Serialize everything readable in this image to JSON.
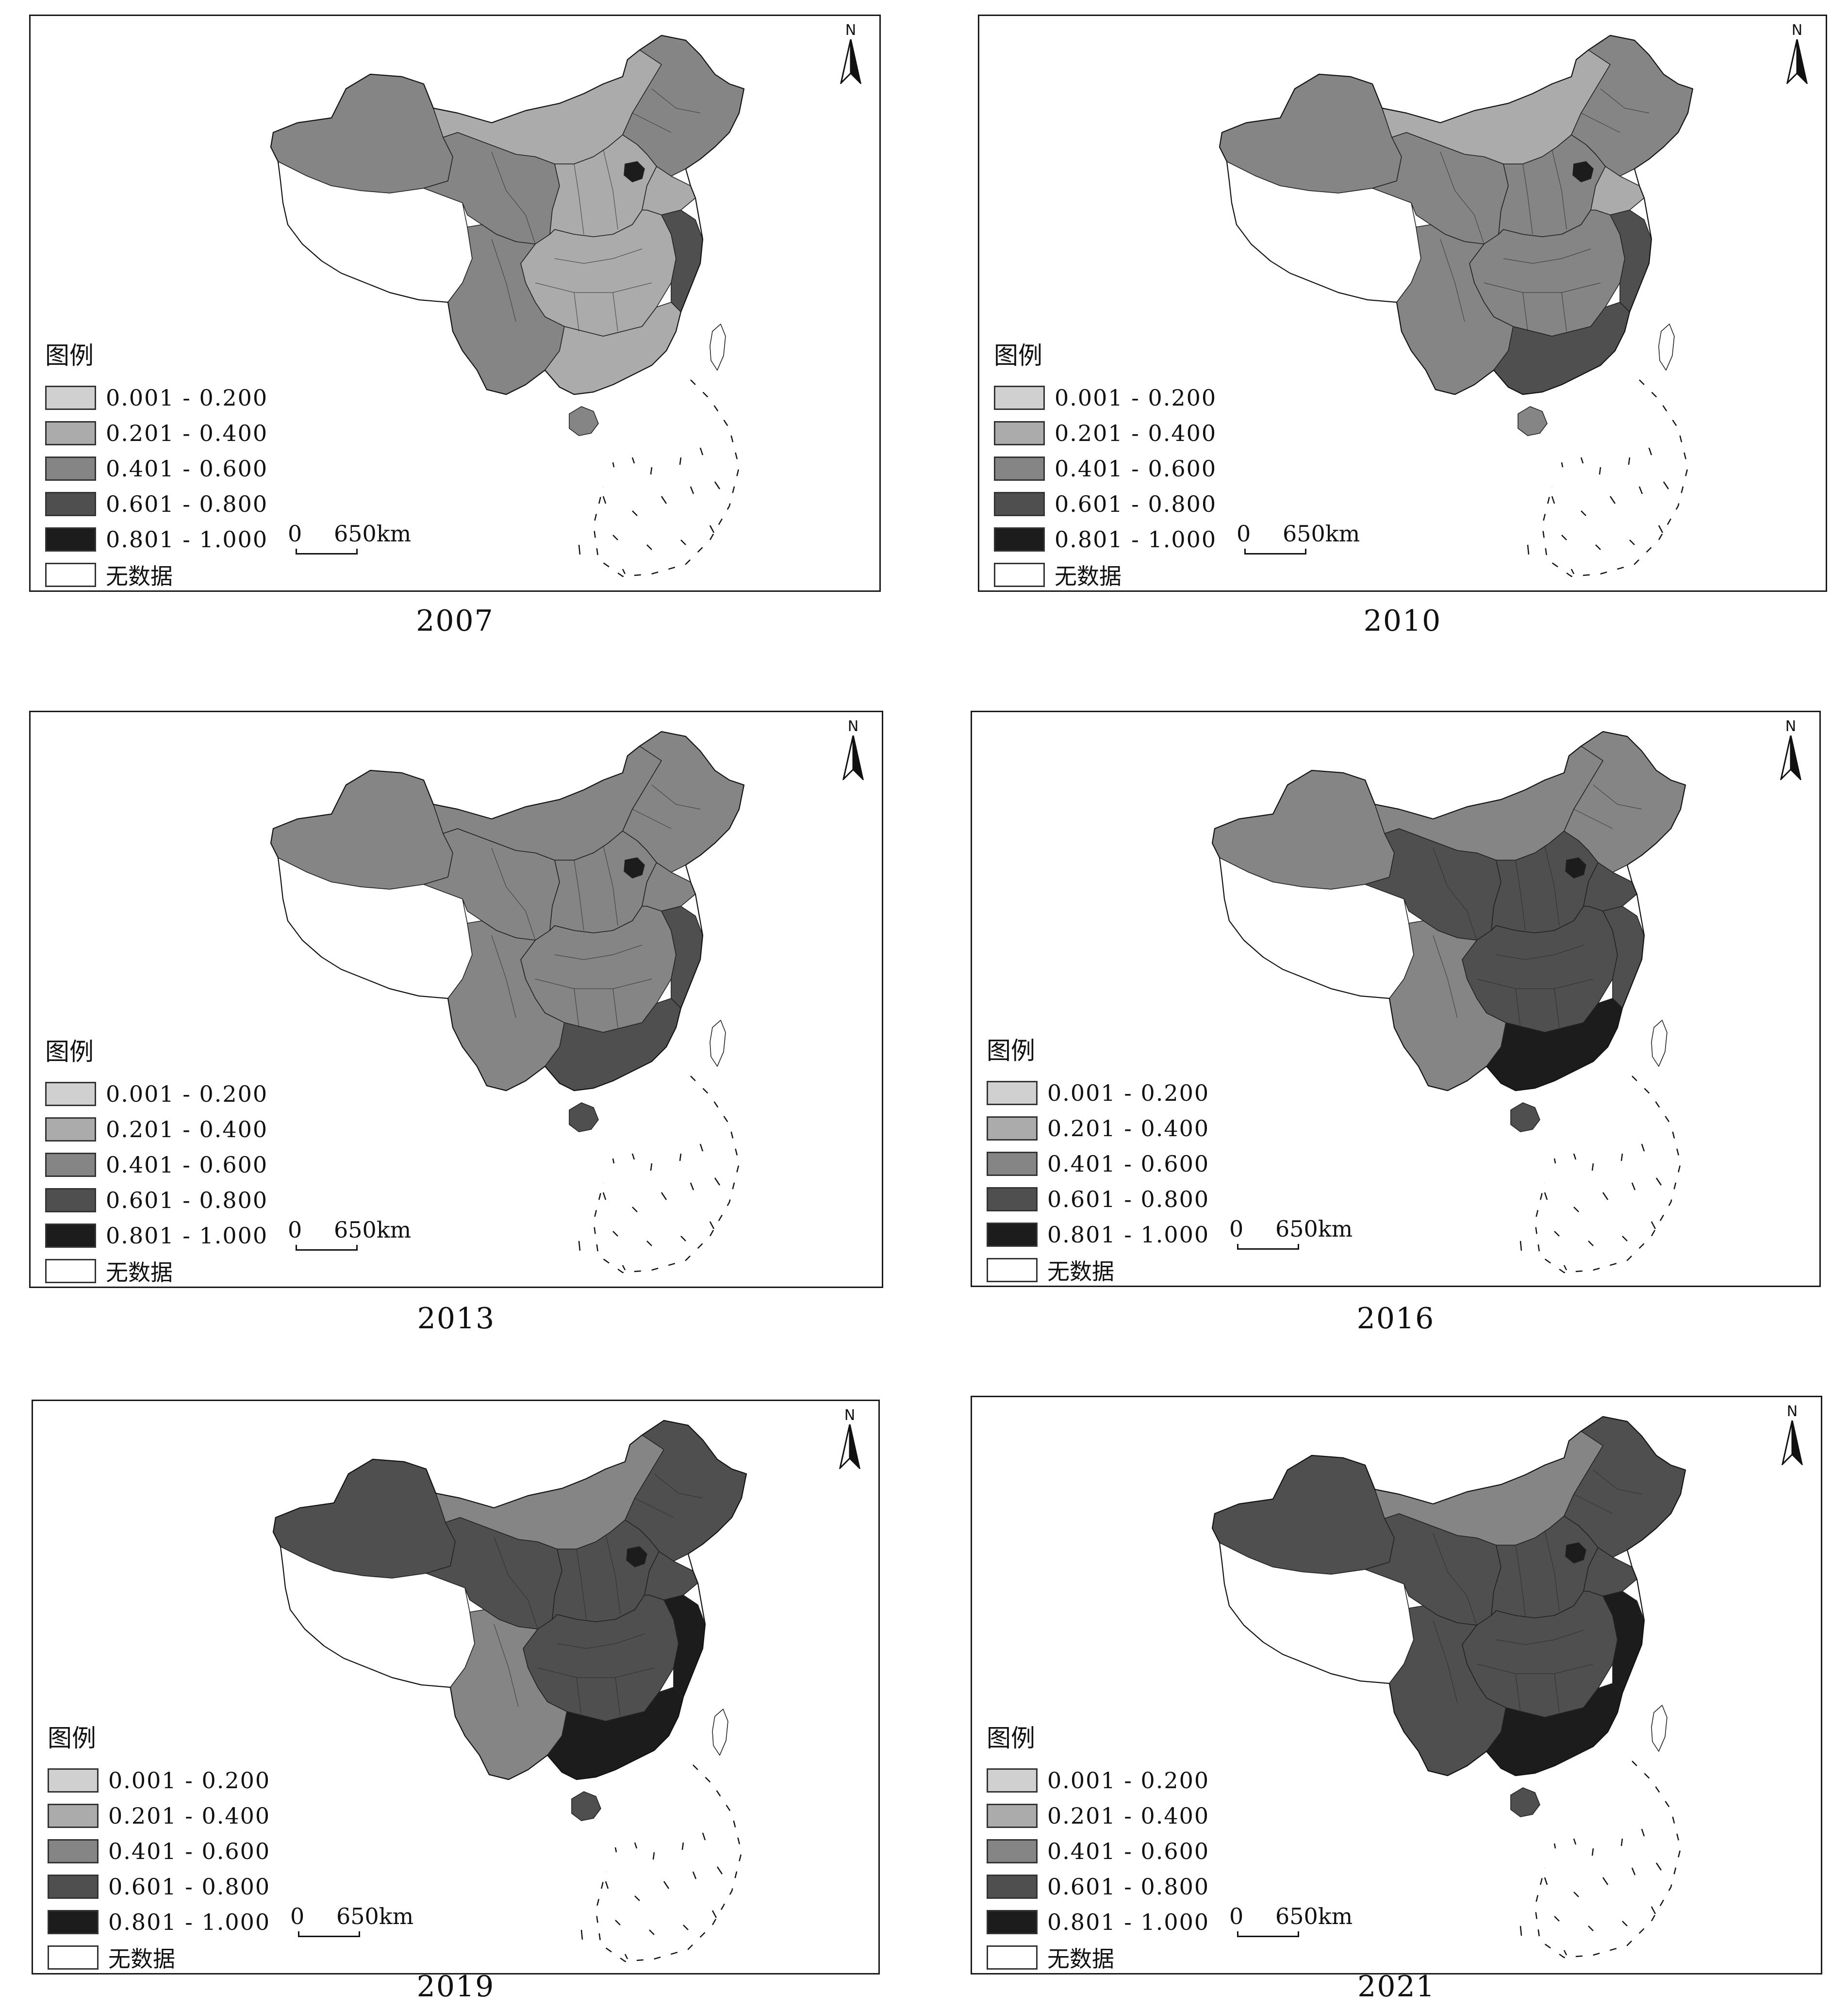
{
  "legend": {
    "title": "图例",
    "classes": [
      {
        "label": "0.001 - 0.200",
        "color": "#d0d0d0"
      },
      {
        "label": "0.201 - 0.400",
        "color": "#ababab"
      },
      {
        "label": "0.401 - 0.600",
        "color": "#858585"
      },
      {
        "label": "0.601 - 0.800",
        "color": "#4f4f4f"
      },
      {
        "label": "0.801 - 1.000",
        "color": "#1c1c1c"
      }
    ],
    "nodata_label": "无数据",
    "nodata_color": "#ffffff"
  },
  "north_arrow": {
    "label": "N"
  },
  "scale_bar": {
    "zero": "0",
    "distance": "650km"
  },
  "panels": [
    {
      "year": "2007",
      "regions": {
        "northeast": 2,
        "inner_mongolia": 1,
        "xinjiang": 2,
        "tibet": -1,
        "northwest": 2,
        "north_central": 1,
        "beijing": 4,
        "shandong_coast": 1,
        "central": 1,
        "southwest": 2,
        "south": 1,
        "yangtze_delta": 3,
        "hainan": 2,
        "taiwan": -1
      }
    },
    {
      "year": "2010",
      "regions": {
        "northeast": 2,
        "inner_mongolia": 1,
        "xinjiang": 2,
        "tibet": -1,
        "northwest": 2,
        "north_central": 2,
        "beijing": 4,
        "shandong_coast": 1,
        "central": 2,
        "southwest": 2,
        "south": 3,
        "yangtze_delta": 3,
        "hainan": 2,
        "taiwan": -1
      }
    },
    {
      "year": "2013",
      "regions": {
        "northeast": 2,
        "inner_mongolia": 2,
        "xinjiang": 2,
        "tibet": -1,
        "northwest": 2,
        "north_central": 2,
        "beijing": 4,
        "shandong_coast": 2,
        "central": 2,
        "southwest": 2,
        "south": 3,
        "yangtze_delta": 3,
        "hainan": 3,
        "taiwan": -1
      }
    },
    {
      "year": "2016",
      "regions": {
        "northeast": 2,
        "inner_mongolia": 2,
        "xinjiang": 2,
        "tibet": -1,
        "northwest": 3,
        "north_central": 3,
        "beijing": 4,
        "shandong_coast": 3,
        "central": 3,
        "southwest": 2,
        "south": 4,
        "yangtze_delta": 3,
        "hainan": 3,
        "taiwan": -1
      }
    },
    {
      "year": "2019",
      "regions": {
        "northeast": 3,
        "inner_mongolia": 2,
        "xinjiang": 3,
        "tibet": -1,
        "northwest": 3,
        "north_central": 3,
        "beijing": 4,
        "shandong_coast": 3,
        "central": 3,
        "southwest": 2,
        "south": 4,
        "yangtze_delta": 4,
        "hainan": 3,
        "taiwan": -1
      }
    },
    {
      "year": "2021",
      "regions": {
        "northeast": 3,
        "inner_mongolia": 2,
        "xinjiang": 3,
        "tibet": -1,
        "northwest": 3,
        "north_central": 3,
        "beijing": 4,
        "shandong_coast": 3,
        "central": 3,
        "southwest": 3,
        "south": 4,
        "yangtze_delta": 4,
        "hainan": 3,
        "taiwan": -1
      }
    }
  ]
}
